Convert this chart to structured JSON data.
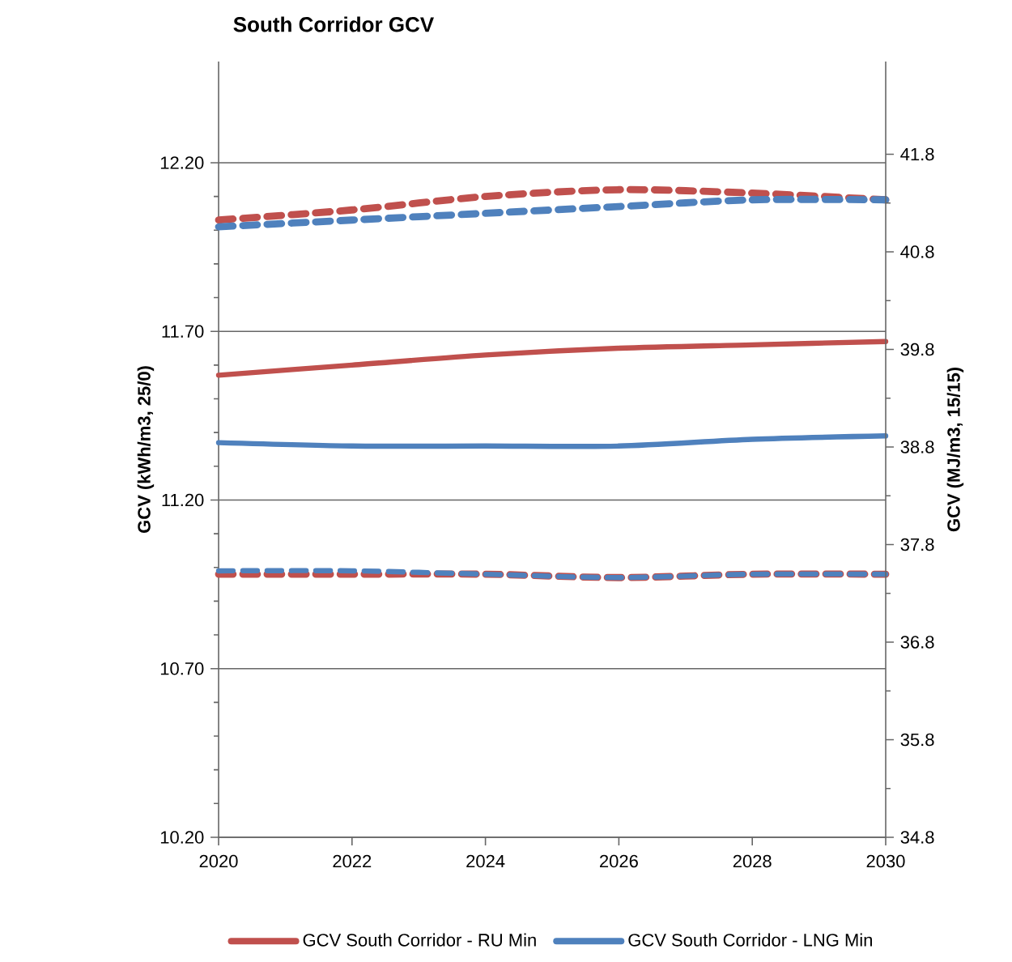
{
  "chart_data": {
    "type": "line",
    "title": "South Corridor GCV",
    "ylabel": "GCV (kWh/m3, 25/0)",
    "y2label": "GCV (MJ/m3, 15/15)",
    "x": [
      2020,
      2022,
      2024,
      2026,
      2028,
      2030
    ],
    "xlim": [
      2020,
      2030
    ],
    "xticks": [
      2020,
      2022,
      2024,
      2026,
      2028,
      2030
    ],
    "ylim": [
      10.2,
      12.5
    ],
    "yticks": [
      {
        "value": 10.2,
        "label": "10.20"
      },
      {
        "value": 10.7,
        "label": "10.70"
      },
      {
        "value": 11.2,
        "label": "11.20"
      },
      {
        "value": 11.7,
        "label": "11.70"
      },
      {
        "value": 12.2,
        "label": "12.20"
      }
    ],
    "y2lim": [
      34.8,
      42.75
    ],
    "y2ticks": [
      34.8,
      35.8,
      36.8,
      37.8,
      38.8,
      39.8,
      40.8,
      41.8
    ],
    "grid": "y",
    "legend": "bottom",
    "series": [
      {
        "name": "GCV South Corridor - RU Min",
        "color": "#c0504d",
        "line_style": "solid",
        "values": [
          11.57,
          11.6,
          11.63,
          11.65,
          11.66,
          11.67
        ]
      },
      {
        "name": "GCV South Corridor - LNG Min",
        "color": "#4f81bd",
        "line_style": "solid",
        "values": [
          11.37,
          11.36,
          11.36,
          11.36,
          11.38,
          11.39
        ]
      },
      {
        "color": "#c0504d",
        "line_style": "dashed",
        "values": [
          12.03,
          12.06,
          12.1,
          12.12,
          12.11,
          12.09
        ]
      },
      {
        "color": "#4f81bd",
        "line_style": "dashed",
        "values": [
          12.01,
          12.03,
          12.05,
          12.07,
          12.09,
          12.09
        ]
      },
      {
        "color": "#c0504d",
        "line_style": "dashed",
        "values": [
          10.98,
          10.98,
          10.98,
          10.97,
          10.98,
          10.98
        ]
      },
      {
        "color": "#4f81bd",
        "line_style": "dashed",
        "values": [
          10.99,
          10.99,
          10.98,
          10.97,
          10.98,
          10.98
        ]
      }
    ]
  }
}
